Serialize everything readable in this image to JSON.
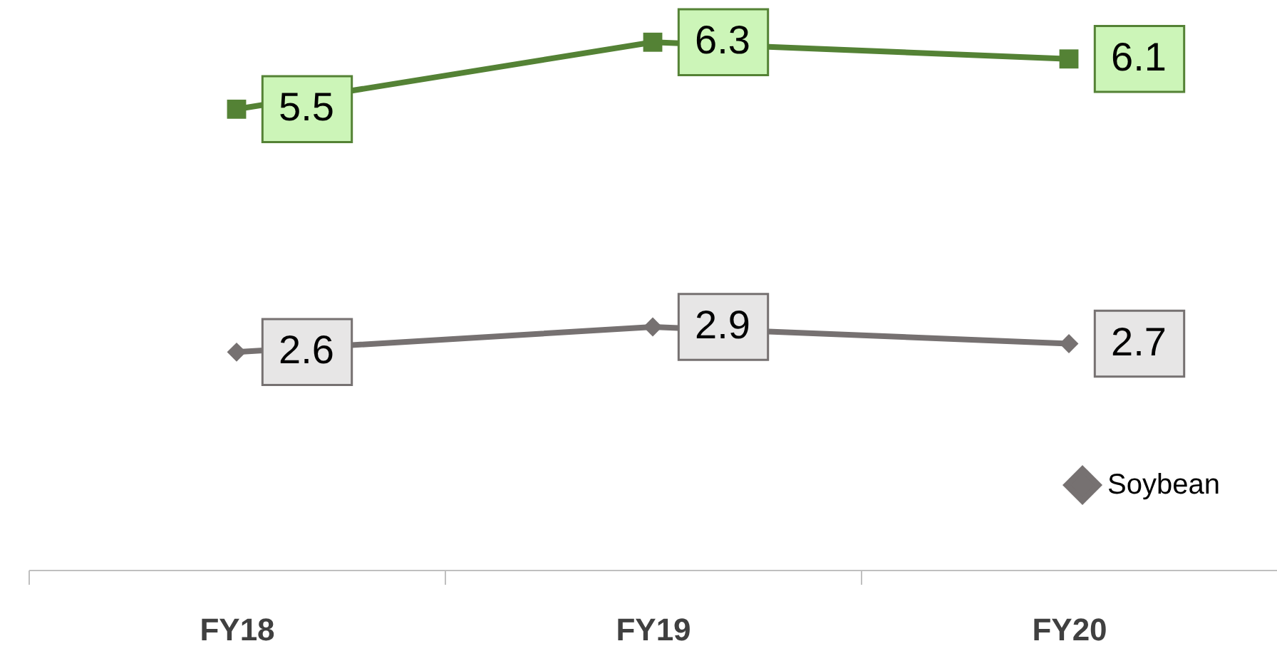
{
  "chart_data": {
    "type": "line",
    "categories": [
      "FY18",
      "FY19",
      "FY20"
    ],
    "series": [
      {
        "color": "#548235",
        "values": [
          5.5,
          6.3,
          6.1
        ],
        "marker": "square"
      },
      {
        "name": "Soybean",
        "color": "#767171",
        "values": [
          2.6,
          2.9,
          2.7
        ],
        "marker": "diamond"
      }
    ],
    "data_labels": true,
    "legend": "bottom right",
    "grid": false,
    "tick_labels": "x"
  }
}
